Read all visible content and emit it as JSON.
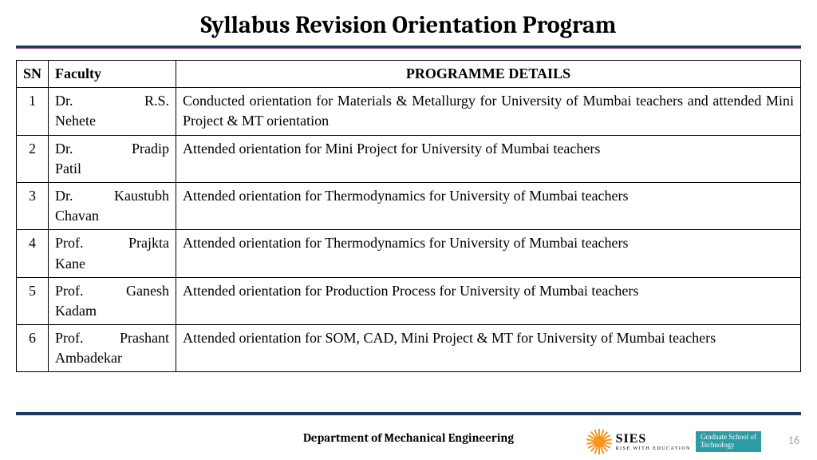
{
  "title": "Syllabus Revision Orientation Program",
  "table": {
    "columns": {
      "sn": "SN",
      "faculty": "Faculty",
      "details": "PROGRAMME DETAILS"
    },
    "rows": [
      {
        "sn": "1",
        "faculty_line1": "Dr.",
        "faculty_suffix": "R.S.",
        "faculty_line2": "Nehete",
        "details": "Conducted orientation for Materials & Metallurgy for University of Mumbai teachers  and attended Mini Project  & MT orientation"
      },
      {
        "sn": "2",
        "faculty_line1": "Dr.",
        "faculty_suffix": "Pradip",
        "faculty_line2": "Patil",
        "details": "Attended orientation for Mini Project  for University of Mumbai  teachers"
      },
      {
        "sn": "3",
        "faculty_line1": "Dr.",
        "faculty_suffix": "Kaustubh",
        "faculty_line2": "Chavan",
        "details": "Attended orientation for Thermodynamics for University of Mumbai  teachers"
      },
      {
        "sn": "4",
        "faculty_line1": "Prof.",
        "faculty_suffix": "Prajkta",
        "faculty_line2": "Kane",
        "details": "Attended orientation for Thermodynamics for University of Mumbai  teachers"
      },
      {
        "sn": "5",
        "faculty_line1": "Prof.",
        "faculty_suffix": "Ganesh",
        "faculty_line2": "Kadam",
        "details": "Attended orientation for Production Process for University of Mumbai teachers"
      },
      {
        "sn": "6",
        "faculty_line1": "Prof.",
        "faculty_suffix": "Prashant",
        "faculty_line2": "Ambadekar",
        "details": "Attended orientation for SOM, CAD, Mini Project  & MT for University of Mumbai  teachers"
      }
    ]
  },
  "footer": {
    "department": "Department of Mechanical Engineering",
    "logo_main": "SIES",
    "logo_tag": "RISE WITH EDUCATION",
    "logo_box_l1": "Graduate School of",
    "logo_box_l2": "Technology",
    "page_number": "16"
  },
  "colors": {
    "rule_dark": "#1f3864",
    "accent_teal": "#2e9ca6",
    "sun": "#f7941d",
    "page_num": "#a6a6a6"
  }
}
